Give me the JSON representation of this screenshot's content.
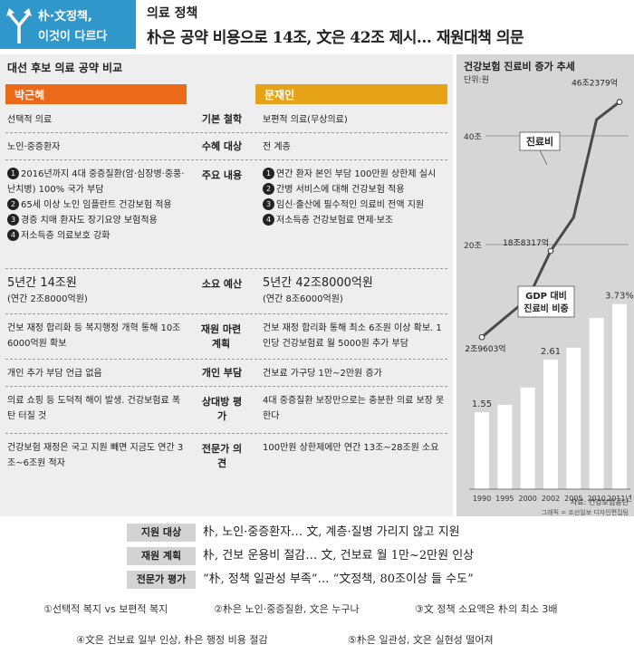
{
  "header": {
    "badge_line1": "朴·文정책,",
    "badge_line2": "이것이 다르다",
    "kicker": "의료 정책",
    "headline": "朴은 공약 비용으로 14조, 文은 42조 제시… 재원대책 의문"
  },
  "compare": {
    "title": "대선 후보 의료 공약 비교",
    "left_name": "박근혜",
    "right_name": "문재인",
    "rows": [
      {
        "category": "기본 철학",
        "left": "선택적 의료",
        "right": "보편적 의료(무상의료)"
      },
      {
        "category": "수혜 대상",
        "left": "노인·중증환자",
        "right": "전 계층"
      },
      {
        "category": "주요 내용",
        "left_items": [
          "2016년까지 4대 중증질환(암·심장병·중풍·난치병) 100% 국가 부담",
          "65세 이상 노인 임플란트 건강보험 적용",
          "경증 치매 환자도 장기요양 보험적용",
          "저소득층 의료보호 강화"
        ],
        "right_items": [
          "연간 환자 본인 부담 100만원 상한제 실시",
          "간병 서비스에 대해 건강보험 적용",
          "임신·출산에 필수적인 의료비 전액 지원",
          "저소득층 건강보험료 면제·보조"
        ]
      },
      {
        "category": "소요 예산",
        "left": "5년간 14조원",
        "left_sub": "(연간 2조8000억원)",
        "right": "5년간 42조8000억원",
        "right_sub": "(연간 8조6000억원)"
      },
      {
        "category": "재원 마련 계획",
        "left": "건보 재정 합리화 등 복지행정 개혁 통해 10조6000억원 확보",
        "right": "건보 재정 합리화 통해 최소 6조원 이상 확보. 1인당 건강보험료 월 5000원 추가 부담"
      },
      {
        "category": "개인 부담",
        "left": "개인 추가 부담 언급 없음",
        "right": "건보료 가구당 1만~2만원 증가"
      },
      {
        "category": "상대방 평가",
        "left": "의료 쇼핑 등 도덕적 해이 발생. 건강보험료 폭탄 터질 것",
        "right": "4대 중증질환 보장만으로는 충분한 의료 보장 못한다"
      },
      {
        "category": "전문가 의견",
        "left": "건강보험 재정은 국고 지원 빼면 지금도 연간 3조~6조원 적자",
        "right": "100만원 상한제에만 연간 13조~28조원 소요"
      }
    ]
  },
  "chart_data": {
    "title": "건강보험 진료비 증가 추세",
    "unit": "단위:원",
    "type": "line+bar",
    "categories": [
      "1990",
      "1995",
      "2000",
      "2002",
      "2005",
      "2010",
      "2011년"
    ],
    "line": {
      "name": "진료비",
      "ylim": [
        0,
        50
      ],
      "y_ticks": [
        "40조",
        "20조"
      ],
      "y_tick_values": [
        40,
        20
      ],
      "points": [
        {
          "x": "1990",
          "value": 2.9603,
          "label": "2조9603억"
        },
        {
          "x": "2002",
          "value": 18.8317,
          "label": "18조8317억"
        },
        {
          "x": "2011년",
          "value": 46.2379,
          "label": "46조2379억"
        }
      ],
      "curve_values": [
        2.9603,
        6.5,
        10.0,
        18.8317,
        25.0,
        43.0,
        46.2379
      ]
    },
    "bars": {
      "name": "GDP 대비 진료비 비중",
      "values": [
        1.55,
        null,
        null,
        2.61,
        null,
        null,
        3.73
      ],
      "labels": [
        "1.55",
        "",
        "",
        "2.61",
        "",
        "",
        "3.73%"
      ],
      "display_values": [
        1.55,
        1.7,
        2.05,
        2.61,
        2.85,
        3.45,
        3.73
      ],
      "ylim": [
        0,
        4.2
      ]
    },
    "source": "자료: 건강보험공단",
    "credit": "그래픽 = 조선일보 디자인편집팀"
  },
  "summary": [
    {
      "tag": "지원 대상",
      "text": "朴, 노인·중증환자… 文, 계층·질병 가리지 않고 지원"
    },
    {
      "tag": "재원 계획",
      "text": "朴, 건보 운용비 절감… 文, 건보료 월 1만~2만원 인상"
    },
    {
      "tag": "전문가 평가",
      "text": "“朴, 정책 일관성 부족”… “文정책, 80조이상 들 수도”"
    }
  ],
  "options": [
    "①선택적 복지 vs 보편적 복지",
    "②朴은 노인·중증질환, 文은 누구나",
    "③文 정책 소요액은 朴의 최소 3배",
    "④文은 건보료 일부 인상, 朴은 행정 비용 절감",
    "⑤朴은 일관성, 文은 실현성 떨어져"
  ]
}
